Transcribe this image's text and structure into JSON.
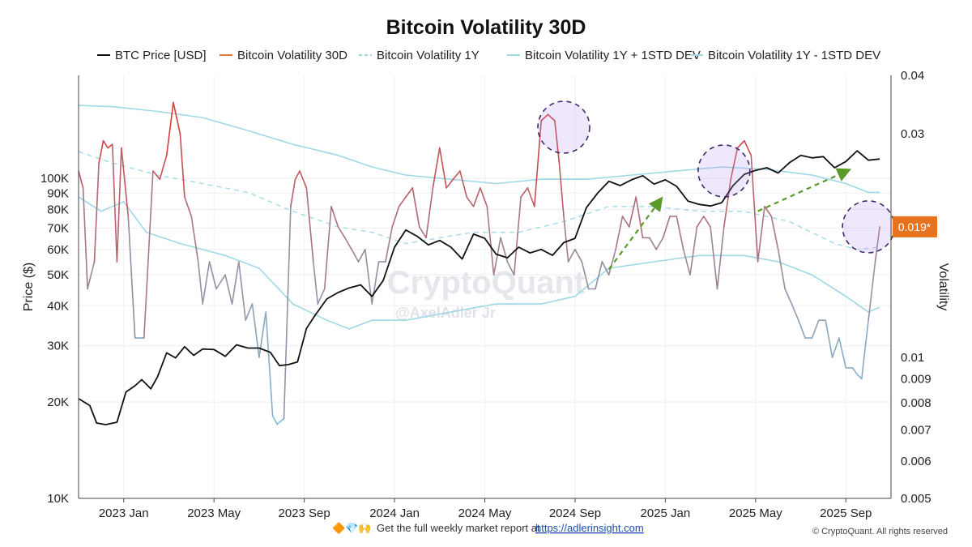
{
  "chart_data": {
    "type": "line",
    "title": "Bitcoin Volatility 30D",
    "legend": [
      {
        "name": "BTC Price [USD]",
        "color": "#111111",
        "style": "solid"
      },
      {
        "name": "Bitcoin Volatility 30D",
        "color": "#e07b39",
        "style": "solid"
      },
      {
        "name": "Bitcoin Volatility 1Y",
        "color": "#9fd8e6",
        "style": "dashed"
      },
      {
        "name": "Bitcoin Volatility 1Y + 1STD DEV",
        "color": "#9fd8e6",
        "style": "solid"
      },
      {
        "name": "Bitcoin Volatility 1Y - 1STD DEV",
        "color": "#9fd8e6",
        "style": "solid"
      }
    ],
    "ylabel_left": "Price ($)",
    "ylabel_right": "Volatility",
    "left_axis": {
      "scale": "log",
      "ylim": [
        10000,
        210000
      ],
      "ticks": [
        "100K",
        "90K",
        "80K",
        "70K",
        "60K",
        "50K",
        "40K",
        "30K",
        "20K",
        "10K"
      ],
      "tick_values": [
        100000,
        90000,
        80000,
        70000,
        60000,
        50000,
        40000,
        30000,
        20000,
        10000
      ]
    },
    "right_axis": {
      "scale": "log",
      "ylim": [
        0.005,
        0.04
      ],
      "ticks": [
        "0.04",
        "0.03",
        "0.01",
        "0.009",
        "0.008",
        "0.007",
        "0.006",
        "0.005"
      ],
      "tick_values": [
        0.04,
        0.03,
        0.01,
        0.009,
        0.008,
        0.007,
        0.006,
        0.005
      ]
    },
    "x_ticks": [
      "2023 Jan",
      "2023 May",
      "2023 Sep",
      "2024 Jan",
      "2024 May",
      "2024 Sep",
      "2025 Jan",
      "2025 May",
      "2025 Sep"
    ],
    "x_tick_positions": [
      0.5,
      4.5,
      8.5,
      12.5,
      16.5,
      20.5,
      24.5,
      28.5,
      32.5
    ],
    "x_range": [
      -1.5,
      34.5
    ],
    "btc_price": {
      "x": [
        -1.5,
        -1.0,
        -0.7,
        -0.3,
        0.2,
        0.6,
        1.0,
        1.3,
        1.7,
        2.0,
        2.4,
        2.8,
        3.2,
        3.6,
        4.0,
        4.5,
        5.0,
        5.5,
        6.0,
        6.5,
        7.0,
        7.4,
        7.8,
        8.2,
        8.6,
        9.0,
        9.5,
        10.0,
        10.5,
        11.0,
        11.5,
        12.0,
        12.5,
        13.0,
        13.5,
        14.0,
        14.5,
        15.0,
        15.5,
        16.0,
        16.5,
        17.0,
        17.5,
        18.0,
        18.5,
        19.0,
        19.5,
        20.0,
        20.5,
        21.0,
        21.5,
        22.0,
        22.5,
        23.0,
        23.5,
        24.0,
        24.5,
        25.0,
        25.5,
        26.0,
        26.5,
        27.0,
        27.5,
        28.0,
        28.5,
        29.0,
        29.5,
        30.0,
        30.5,
        31.0,
        31.5,
        32.0,
        32.5,
        33.0,
        33.5,
        34.0
      ],
      "values": [
        20500,
        19500,
        17200,
        17000,
        17300,
        21500,
        22500,
        23500,
        22000,
        24000,
        28500,
        27500,
        29800,
        28000,
        29300,
        29200,
        27800,
        30200,
        29500,
        29500,
        28600,
        26000,
        26200,
        26700,
        34000,
        37500,
        42000,
        44000,
        45500,
        46500,
        42800,
        48000,
        61000,
        69000,
        66000,
        62000,
        64000,
        61000,
        56000,
        67000,
        65000,
        58000,
        56500,
        61000,
        58500,
        60000,
        57500,
        63000,
        65000,
        81000,
        90000,
        98000,
        95000,
        99000,
        102000,
        96000,
        99000,
        94500,
        85000,
        83000,
        82000,
        84000,
        95000,
        103000,
        106000,
        108000,
        104000,
        112000,
        118000,
        116000,
        117000,
        108000,
        113000,
        122000,
        114000,
        115000
      ]
    },
    "vol_30d": {
      "x": [
        -1.5,
        -1.3,
        -1.1,
        -0.8,
        -0.6,
        -0.4,
        -0.2,
        0.0,
        0.2,
        0.4,
        0.7,
        1.0,
        1.4,
        1.8,
        2.1,
        2.4,
        2.7,
        3.0,
        3.2,
        3.5,
        3.8,
        4.0,
        4.3,
        4.6,
        5.0,
        5.3,
        5.6,
        5.9,
        6.2,
        6.5,
        6.8,
        7.1,
        7.3,
        7.6,
        7.9,
        8.1,
        8.3,
        8.6,
        8.9,
        9.1,
        9.4,
        9.7,
        10.0,
        10.3,
        10.6,
        10.9,
        11.2,
        11.5,
        11.8,
        12.1,
        12.4,
        12.7,
        13.0,
        13.3,
        13.6,
        13.9,
        14.2,
        14.5,
        14.8,
        15.1,
        15.4,
        15.7,
        16.0,
        16.3,
        16.6,
        16.9,
        17.2,
        17.5,
        17.8,
        18.1,
        18.4,
        18.7,
        19.0,
        19.3,
        19.6,
        19.8,
        20.0,
        20.2,
        20.5,
        20.8,
        21.1,
        21.4,
        21.7,
        22.0,
        22.3,
        22.6,
        22.9,
        23.2,
        23.5,
        23.8,
        24.1,
        24.4,
        24.7,
        25.0,
        25.3,
        25.6,
        25.9,
        26.2,
        26.5,
        26.8,
        27.1,
        27.4,
        27.7,
        28.0,
        28.3,
        28.6,
        28.9,
        29.2,
        29.5,
        29.8,
        30.1,
        30.4,
        30.7,
        31.0,
        31.3,
        31.6,
        31.9,
        32.2,
        32.5,
        32.8,
        33.0,
        33.2,
        33.5,
        33.8,
        34.0
      ],
      "values": [
        0.025,
        0.023,
        0.014,
        0.016,
        0.026,
        0.029,
        0.028,
        0.0285,
        0.016,
        0.028,
        0.02,
        0.011,
        0.011,
        0.025,
        0.024,
        0.027,
        0.035,
        0.03,
        0.022,
        0.02,
        0.016,
        0.013,
        0.016,
        0.014,
        0.015,
        0.013,
        0.016,
        0.012,
        0.013,
        0.01,
        0.0125,
        0.0075,
        0.0072,
        0.0074,
        0.021,
        0.024,
        0.025,
        0.023,
        0.016,
        0.013,
        0.014,
        0.021,
        0.019,
        0.018,
        0.017,
        0.016,
        0.017,
        0.013,
        0.016,
        0.016,
        0.019,
        0.021,
        0.022,
        0.023,
        0.019,
        0.018,
        0.023,
        0.028,
        0.023,
        0.024,
        0.025,
        0.022,
        0.021,
        0.023,
        0.021,
        0.015,
        0.018,
        0.016,
        0.015,
        0.022,
        0.023,
        0.021,
        0.032,
        0.033,
        0.032,
        0.026,
        0.02,
        0.016,
        0.017,
        0.016,
        0.014,
        0.014,
        0.016,
        0.015,
        0.017,
        0.02,
        0.019,
        0.022,
        0.018,
        0.018,
        0.017,
        0.018,
        0.02,
        0.02,
        0.017,
        0.015,
        0.019,
        0.02,
        0.019,
        0.014,
        0.019,
        0.024,
        0.028,
        0.029,
        0.027,
        0.016,
        0.021,
        0.02,
        0.017,
        0.014,
        0.013,
        0.012,
        0.011,
        0.011,
        0.012,
        0.012,
        0.01,
        0.011,
        0.0095,
        0.0095,
        0.0092,
        0.009,
        0.012,
        0.016,
        0.019
      ]
    },
    "vol_1y": {
      "x": [
        -1.5,
        0.0,
        2.0,
        4.0,
        6.0,
        8.0,
        10.0,
        11.5,
        13.0,
        14.5,
        16.0,
        18.0,
        20.0,
        22.0,
        24.0,
        26.0,
        28.0,
        30.0,
        32.0,
        33.0,
        34.0
      ],
      "values": [
        0.0275,
        0.026,
        0.0245,
        0.0235,
        0.0225,
        0.0205,
        0.019,
        0.0185,
        0.0175,
        0.018,
        0.0185,
        0.0185,
        0.0195,
        0.021,
        0.021,
        0.0205,
        0.0205,
        0.0195,
        0.0175,
        0.017,
        0.0172
      ]
    },
    "vol_1y_plus": {
      "x": [
        -1.5,
        0.0,
        2.0,
        4.0,
        6.0,
        8.0,
        10.0,
        11.5,
        13.0,
        15.0,
        17.0,
        19.0,
        21.0,
        23.0,
        25.0,
        27.0,
        29.0,
        31.0,
        32.5,
        33.5,
        34.0
      ],
      "values": [
        0.0345,
        0.0343,
        0.0335,
        0.0325,
        0.0305,
        0.0285,
        0.027,
        0.0255,
        0.0245,
        0.024,
        0.0235,
        0.024,
        0.024,
        0.0245,
        0.025,
        0.0255,
        0.0252,
        0.0245,
        0.0235,
        0.0225,
        0.0225
      ]
    },
    "vol_1y_minus": {
      "x": [
        -1.5,
        -0.5,
        0.5,
        1.5,
        3.0,
        5.0,
        6.5,
        8.0,
        9.5,
        10.5,
        11.5,
        13.0,
        15.0,
        17.0,
        19.0,
        20.5,
        22.0,
        24.0,
        26.0,
        28.0,
        29.5,
        31.0,
        32.5,
        33.5,
        34.0
      ],
      "values": [
        0.022,
        0.0205,
        0.0215,
        0.0185,
        0.0175,
        0.0165,
        0.0155,
        0.013,
        0.012,
        0.0115,
        0.012,
        0.012,
        0.0125,
        0.013,
        0.013,
        0.0135,
        0.0155,
        0.016,
        0.0165,
        0.0165,
        0.016,
        0.015,
        0.0135,
        0.0125,
        0.0128
      ]
    },
    "highlights": [
      {
        "x": 20.0,
        "value": 0.031,
        "type": "circle"
      },
      {
        "x": 27.1,
        "value": 0.025,
        "type": "circle"
      },
      {
        "x": 33.5,
        "value": 0.019,
        "type": "circle"
      }
    ],
    "arrows": [
      {
        "from": {
          "x": 22.0,
          "price": 52000
        },
        "to": {
          "x": 24.3,
          "price": 86000
        }
      },
      {
        "from": {
          "x": 28.6,
          "price": 79000
        },
        "to": {
          "x": 32.6,
          "price": 106000
        }
      }
    ],
    "current_value_badge": {
      "text": "0.019*",
      "value": 0.019,
      "color": "#e8731e"
    },
    "annotations": [
      "CryptoQuant",
      "@AxelAdler Jr"
    ]
  },
  "footer": {
    "emoji": "🔶💎🙌",
    "text": "Get the full weekly market report at",
    "link": "https://adlerinsight.com",
    "copyright": "© CryptoQuant. All rights reserved"
  }
}
